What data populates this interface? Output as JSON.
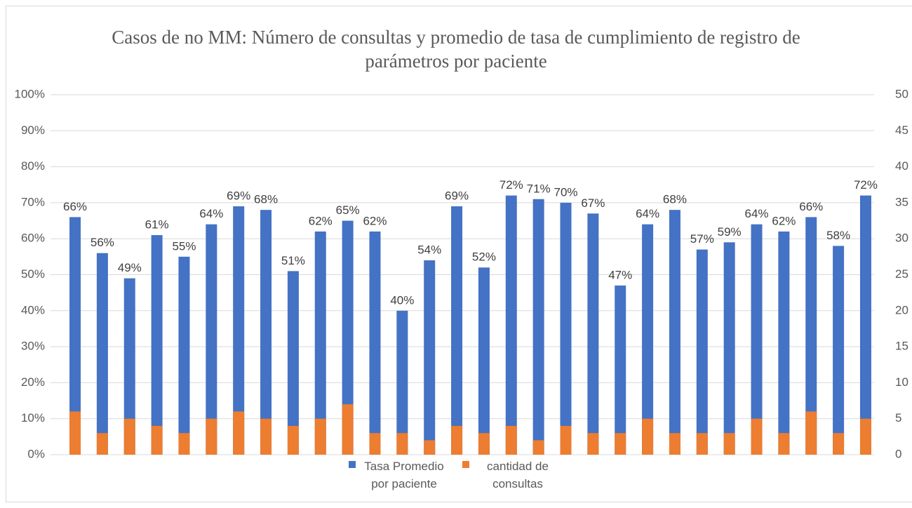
{
  "chart_data": {
    "type": "bar",
    "title": "Casos de no MM: Número de consultas y promedio de tasa de cumplimiento de registro de parámetros por paciente",
    "categories": [
      null,
      null,
      null,
      null,
      null,
      null,
      null,
      null,
      null,
      null,
      null,
      null,
      null,
      null,
      null,
      null,
      null,
      null,
      null,
      null,
      null,
      null,
      null,
      null,
      null,
      null,
      null,
      null,
      null,
      null
    ],
    "series": [
      {
        "name": "Tasa Promedio por paciente",
        "color": "#4472c4",
        "values": [
          66,
          56,
          49,
          61,
          55,
          64,
          69,
          68,
          51,
          62,
          65,
          62,
          40,
          54,
          69,
          52,
          72,
          71,
          70,
          67,
          47,
          64,
          68,
          57,
          59,
          64,
          62,
          66,
          58,
          72
        ],
        "value_labels": [
          "66%",
          "56%",
          "49%",
          "61%",
          "55%",
          "64%",
          "69%",
          "68%",
          "51%",
          "62%",
          "65%",
          "62%",
          "40%",
          "54%",
          "69%",
          "52%",
          "72%",
          "71%",
          "70%",
          "67%",
          "47%",
          "64%",
          "68%",
          "57%",
          "59%",
          "64%",
          "62%",
          "66%",
          "58%",
          "72%"
        ]
      },
      {
        "name": "cantidad de consultas",
        "color": "#ed7d31",
        "axis": "y2",
        "values": [
          6,
          3,
          5,
          4,
          3,
          5,
          6,
          5,
          4,
          5,
          7,
          3,
          3,
          2,
          4,
          3,
          4,
          2,
          4,
          3,
          3,
          5,
          3,
          3,
          3,
          5,
          3,
          6,
          3,
          5
        ]
      }
    ],
    "ylim": [
      0,
      100
    ],
    "yticks": [
      {
        "value": 0,
        "label": "0%"
      },
      {
        "value": 10,
        "label": "10%"
      },
      {
        "value": 20,
        "label": "20%"
      },
      {
        "value": 30,
        "label": "30%"
      },
      {
        "value": 40,
        "label": "40%"
      },
      {
        "value": 50,
        "label": "50%"
      },
      {
        "value": 60,
        "label": "60%"
      },
      {
        "value": 70,
        "label": "70%"
      },
      {
        "value": 80,
        "label": "80%"
      },
      {
        "value": 90,
        "label": "90%"
      },
      {
        "value": 100,
        "label": "100%"
      }
    ],
    "y2lim": [
      0,
      50
    ],
    "y2ticks": [
      0,
      5,
      10,
      15,
      20,
      25,
      30,
      35,
      40,
      45,
      50
    ],
    "grid": true,
    "legend": "bottom"
  }
}
